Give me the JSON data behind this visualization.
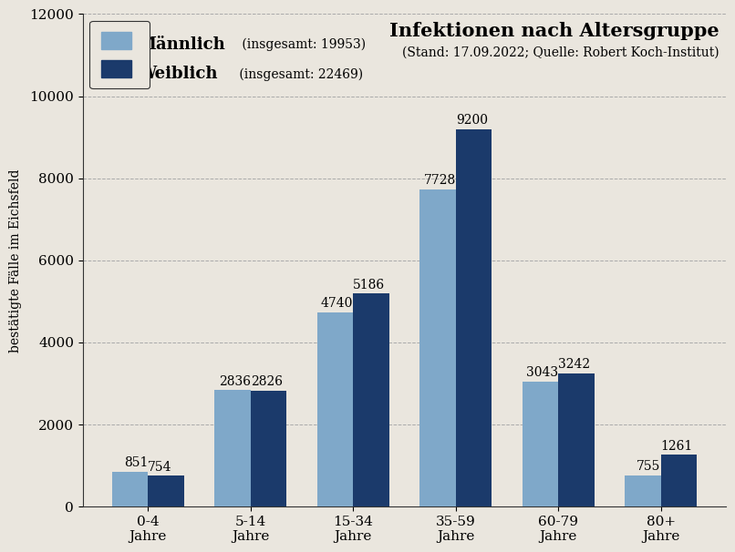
{
  "categories": [
    "0-4\nJahre",
    "5-14\nJahre",
    "15-34\nJahre",
    "35-59\nJahre",
    "60-79\nJahre",
    "80+\nJahre"
  ],
  "maennlich": [
    851,
    2836,
    4740,
    7728,
    3043,
    755
  ],
  "weiblich": [
    754,
    2826,
    5186,
    9200,
    3242,
    1261
  ],
  "color_maennlich": "#7fa8c9",
  "color_weiblich": "#1b3a6b",
  "title": "Infektionen nach Altersgruppe",
  "subtitle": "(Stand: 17.09.2022; Quelle: Robert Koch-Institut)",
  "ylabel": "bestätigte Fälle im Eichsfeld",
  "ylim": [
    0,
    12000
  ],
  "yticks": [
    0,
    2000,
    4000,
    6000,
    8000,
    10000,
    12000
  ],
  "legend_maennlich": "Männlich (insgesamt: 19953)",
  "legend_weiblich": "Weiblich (insgesamt: 22469)",
  "background_color": "#eae6de",
  "title_fontsize": 15,
  "subtitle_fontsize": 10,
  "label_fontsize": 10,
  "tick_fontsize": 11,
  "bar_value_fontsize": 10,
  "bar_width": 0.35,
  "grid_color": "#aaaaaa"
}
